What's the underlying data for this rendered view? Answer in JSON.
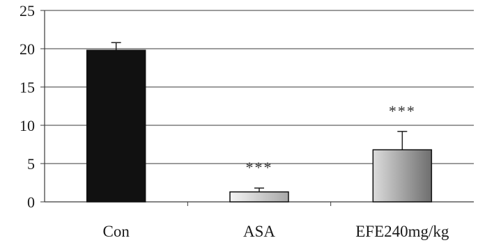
{
  "chart_data": {
    "type": "bar",
    "title": "",
    "xlabel": "",
    "ylabel": "",
    "categories": [
      "Con",
      "ASA",
      "EFE240mg/kg"
    ],
    "values": [
      19.8,
      1.3,
      6.8
    ],
    "error_up": [
      1.0,
      0.5,
      2.4
    ],
    "significance": [
      "",
      "***",
      "***"
    ],
    "ylim": [
      0,
      25
    ],
    "yticks": [
      "0",
      "5",
      "10",
      "15",
      "20",
      "25"
    ],
    "grid": "horizontal",
    "legend": "none",
    "bar_styles": [
      "solid-black",
      "light-gradient",
      "gray-gradient"
    ]
  }
}
